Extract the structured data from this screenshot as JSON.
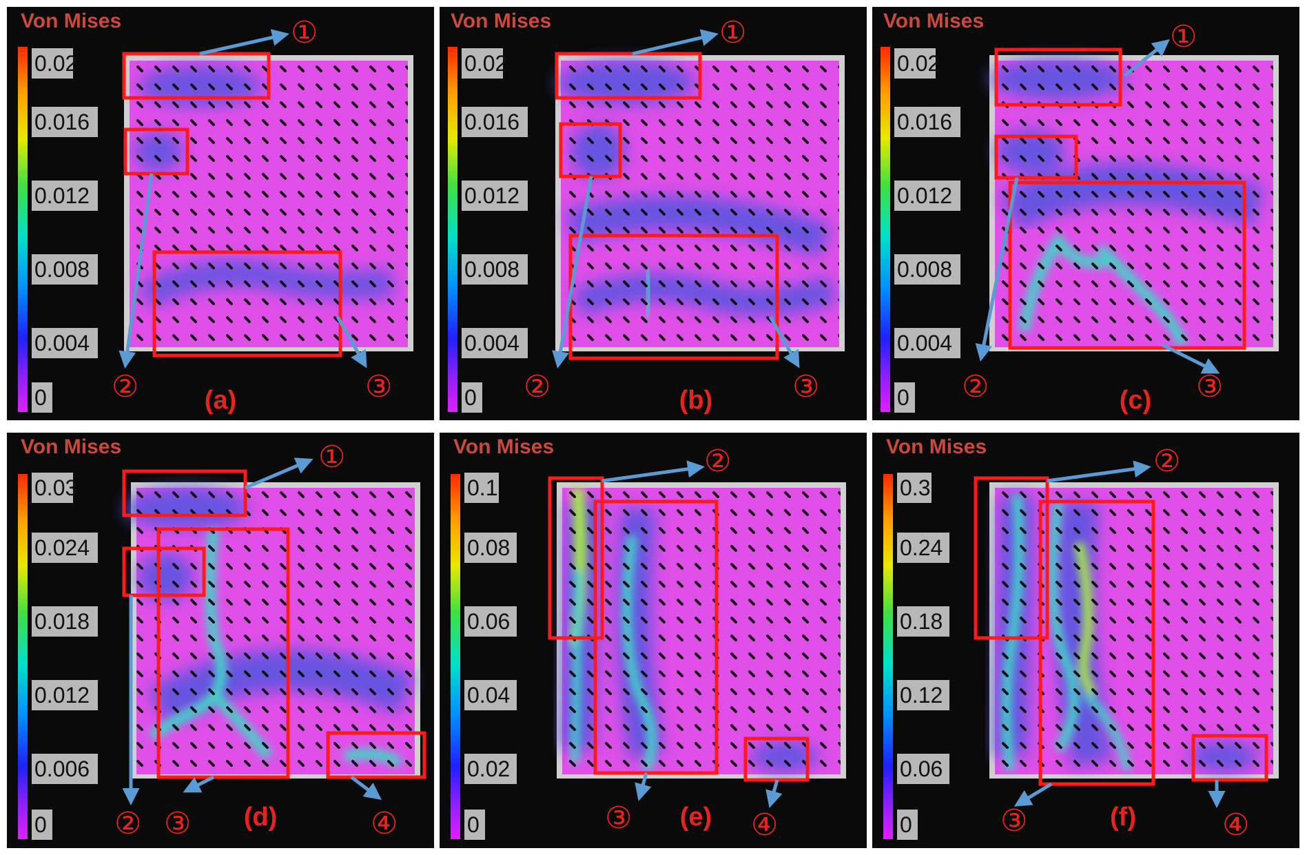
{
  "figure": {
    "colorbar_title": "Von Mises",
    "panels": [
      {
        "label": "(a)",
        "colorbar_ticks": [
          "0.02",
          "0.016",
          "0.012",
          "0.008",
          "0.004",
          "0"
        ],
        "markers": [
          "①",
          "②",
          "③"
        ]
      },
      {
        "label": "(b)",
        "colorbar_ticks": [
          "0.02",
          "0.016",
          "0.012",
          "0.008",
          "0.004",
          "0"
        ],
        "markers": [
          "①",
          "②",
          "③"
        ]
      },
      {
        "label": "(c)",
        "colorbar_ticks": [
          "0.02",
          "0.016",
          "0.012",
          "0.008",
          "0.004",
          "0"
        ],
        "markers": [
          "①",
          "②",
          "③"
        ]
      },
      {
        "label": "(d)",
        "colorbar_ticks": [
          "0.03",
          "0.024",
          "0.018",
          "0.012",
          "0.006",
          "0"
        ],
        "markers": [
          "①",
          "②",
          "③",
          "④"
        ]
      },
      {
        "label": "(e)",
        "colorbar_ticks": [
          "0.1",
          "0.08",
          "0.06",
          "0.04",
          "0.02",
          "0"
        ],
        "markers": [
          "②",
          "③",
          "④"
        ]
      },
      {
        "label": "(f)",
        "colorbar_ticks": [
          "0.3",
          "0.24",
          "0.18",
          "0.12",
          "0.06",
          "0"
        ],
        "markers": [
          "②",
          "③",
          "④"
        ]
      }
    ],
    "colors": {
      "background": "#0a0a0a",
      "specimen": "#e04fe8",
      "low_strain": "#5a55e0",
      "mid_strain": "#45d0c8",
      "high_strain": "#a6e84a",
      "highlight_box": "#ff1a1a",
      "arrow": "#5b9bd5",
      "label_text": "#e8231e",
      "title_text": "#c94a3a",
      "tick_box": "#b8b8b8"
    }
  }
}
